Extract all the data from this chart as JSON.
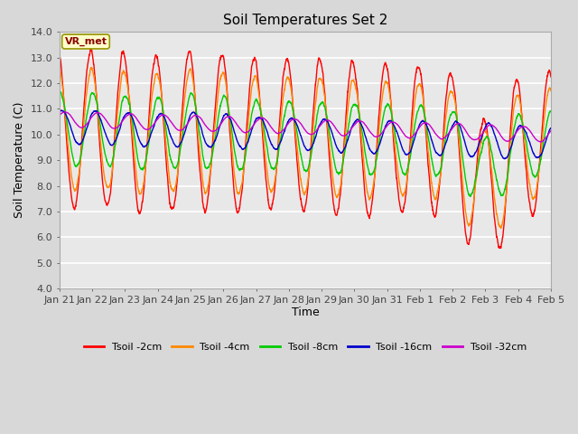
{
  "title": "Soil Temperatures Set 2",
  "xlabel": "Time",
  "ylabel": "Soil Temperature (C)",
  "ylim": [
    4.0,
    14.0
  ],
  "yticks": [
    4.0,
    5.0,
    6.0,
    7.0,
    8.0,
    9.0,
    10.0,
    11.0,
    12.0,
    13.0,
    14.0
  ],
  "x_tick_labels": [
    "Jan 21",
    "Jan 22",
    "Jan 23",
    "Jan 24",
    "Jan 25",
    "Jan 26",
    "Jan 27",
    "Jan 28",
    "Jan 29",
    "Jan 30",
    "Jan 31",
    "Feb 1",
    "Feb 2",
    "Feb 3",
    "Feb 4",
    "Feb 5"
  ],
  "label_annotation": "VR_met",
  "legend_labels": [
    "Tsoil -2cm",
    "Tsoil -4cm",
    "Tsoil -8cm",
    "Tsoil -16cm",
    "Tsoil -32cm"
  ],
  "line_colors": [
    "#ff0000",
    "#ff8800",
    "#00cc00",
    "#0000cc",
    "#cc00cc"
  ],
  "plot_bg_color": "#e8e8e8",
  "fig_bg_color": "#d8d8d8",
  "title_fontsize": 11,
  "axis_label_fontsize": 9,
  "tick_fontsize": 8,
  "n_points": 3360,
  "days": 15
}
